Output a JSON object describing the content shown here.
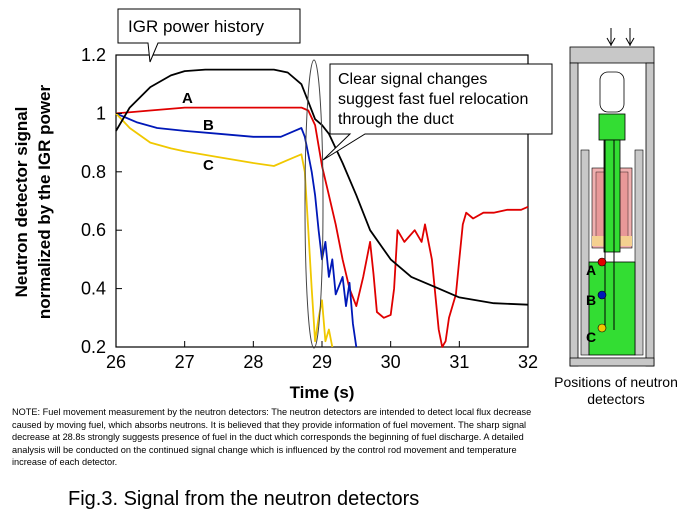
{
  "chart_data": {
    "type": "line",
    "xlabel": "Time (s)",
    "ylabel_line1": "Neutron detector signal",
    "ylabel_line2": "normalized by the IGR power",
    "xlim": [
      26,
      32
    ],
    "ylim": [
      0.2,
      1.2
    ],
    "x_ticks": [
      "26",
      "27",
      "28",
      "29",
      "30",
      "31",
      "32"
    ],
    "y_ticks": [
      "0.2",
      "0.4",
      "0.6",
      "0.8",
      "1",
      "1.2"
    ],
    "grid": false,
    "series": [
      {
        "label": "A",
        "color": "#e00000",
        "points": [
          [
            26,
            1.0
          ],
          [
            26.5,
            1.01
          ],
          [
            27,
            1.02
          ],
          [
            27.5,
            1.02
          ],
          [
            28,
            1.02
          ],
          [
            28.5,
            1.02
          ],
          [
            28.7,
            1.02
          ],
          [
            28.8,
            1.01
          ],
          [
            28.9,
            0.96
          ],
          [
            29.0,
            0.82
          ],
          [
            29.1,
            0.72
          ],
          [
            29.2,
            0.62
          ],
          [
            29.3,
            0.5
          ],
          [
            29.4,
            0.4
          ],
          [
            29.5,
            0.34
          ],
          [
            29.6,
            0.44
          ],
          [
            29.7,
            0.56
          ],
          [
            29.75,
            0.45
          ],
          [
            29.8,
            0.32
          ],
          [
            29.9,
            0.3
          ],
          [
            30.0,
            0.31
          ],
          [
            30.05,
            0.4
          ],
          [
            30.1,
            0.6
          ],
          [
            30.2,
            0.56
          ],
          [
            30.35,
            0.6
          ],
          [
            30.45,
            0.56
          ],
          [
            30.5,
            0.62
          ],
          [
            30.6,
            0.5
          ],
          [
            30.7,
            0.26
          ],
          [
            30.75,
            0.2
          ],
          [
            30.8,
            0.22
          ],
          [
            30.85,
            0.3
          ],
          [
            30.95,
            0.38
          ],
          [
            31.0,
            0.5
          ],
          [
            31.05,
            0.62
          ],
          [
            31.1,
            0.66
          ],
          [
            31.2,
            0.64
          ],
          [
            31.35,
            0.66
          ],
          [
            31.5,
            0.66
          ],
          [
            31.7,
            0.67
          ],
          [
            31.9,
            0.67
          ],
          [
            32.0,
            0.68
          ]
        ]
      },
      {
        "label": "B",
        "color": "#0018b8",
        "points": [
          [
            26,
            1.0
          ],
          [
            26.3,
            0.97
          ],
          [
            26.6,
            0.95
          ],
          [
            27,
            0.94
          ],
          [
            27.5,
            0.93
          ],
          [
            28,
            0.92
          ],
          [
            28.4,
            0.92
          ],
          [
            28.6,
            0.94
          ],
          [
            28.7,
            0.95
          ],
          [
            28.75,
            0.92
          ],
          [
            28.8,
            0.86
          ],
          [
            28.85,
            0.8
          ],
          [
            28.9,
            0.72
          ],
          [
            28.95,
            0.6
          ],
          [
            29.0,
            0.5
          ],
          [
            29.05,
            0.56
          ],
          [
            29.1,
            0.44
          ],
          [
            29.15,
            0.5
          ],
          [
            29.2,
            0.38
          ],
          [
            29.3,
            0.44
          ],
          [
            29.35,
            0.34
          ],
          [
            29.4,
            0.42
          ],
          [
            29.45,
            0.28
          ],
          [
            29.5,
            0.2
          ]
        ]
      },
      {
        "label": "C",
        "color": "#f0c800",
        "points": [
          [
            26,
            1.0
          ],
          [
            26.2,
            0.95
          ],
          [
            26.5,
            0.9
          ],
          [
            26.8,
            0.88
          ],
          [
            27,
            0.87
          ],
          [
            27.5,
            0.85
          ],
          [
            28,
            0.83
          ],
          [
            28.3,
            0.82
          ],
          [
            28.5,
            0.84
          ],
          [
            28.6,
            0.85
          ],
          [
            28.7,
            0.86
          ],
          [
            28.75,
            0.8
          ],
          [
            28.8,
            0.6
          ],
          [
            28.85,
            0.4
          ],
          [
            28.9,
            0.22
          ],
          [
            28.95,
            0.3
          ],
          [
            29.0,
            0.36
          ],
          [
            29.05,
            0.22
          ],
          [
            29.1,
            0.26
          ],
          [
            29.15,
            0.2
          ]
        ]
      },
      {
        "label": "IGR power history",
        "color": "#000000",
        "points": [
          [
            26,
            0.94
          ],
          [
            26.2,
            1.02
          ],
          [
            26.5,
            1.09
          ],
          [
            26.8,
            1.13
          ],
          [
            27,
            1.145
          ],
          [
            27.3,
            1.15
          ],
          [
            27.6,
            1.15
          ],
          [
            28,
            1.15
          ],
          [
            28.3,
            1.15
          ],
          [
            28.5,
            1.14
          ],
          [
            28.7,
            1.1
          ],
          [
            28.8,
            1.04
          ],
          [
            28.9,
            0.98
          ],
          [
            29.0,
            0.96
          ],
          [
            29.1,
            0.93
          ],
          [
            29.3,
            0.83
          ],
          [
            29.5,
            0.72
          ],
          [
            29.7,
            0.6
          ],
          [
            30.0,
            0.5
          ],
          [
            30.3,
            0.44
          ],
          [
            30.7,
            0.4
          ],
          [
            31.0,
            0.37
          ],
          [
            31.5,
            0.35
          ],
          [
            32.0,
            0.345
          ]
        ]
      }
    ],
    "annotations": {
      "callout_igr": "IGR power history",
      "callout_clear_line1": "Clear signal changes",
      "callout_clear_line2": "suggest fast fuel relocation",
      "callout_clear_line3": "through the duct"
    }
  },
  "detector_diagram": {
    "labels": [
      "A",
      "B",
      "C"
    ],
    "caption_line1": "Positions of neutron",
    "caption_line2": "detectors"
  },
  "note_text": "NOTE: Fuel movement measurement by the neutron detectors:  The neutron detectors are intended to detect local flux decrease caused by moving fuel, which absorbs neutrons.  It is believed that they provide information of fuel movement.  The sharp signal decrease at 28.8s strongly suggests presence of fuel in the duct which corresponds the beginning of fuel discharge.  A detailed analysis will be conducted on the continued signal change which is influenced by the control rod movement and temperature increase of each detector.",
  "figure_caption": "Fig.3. Signal from the neutron detectors"
}
